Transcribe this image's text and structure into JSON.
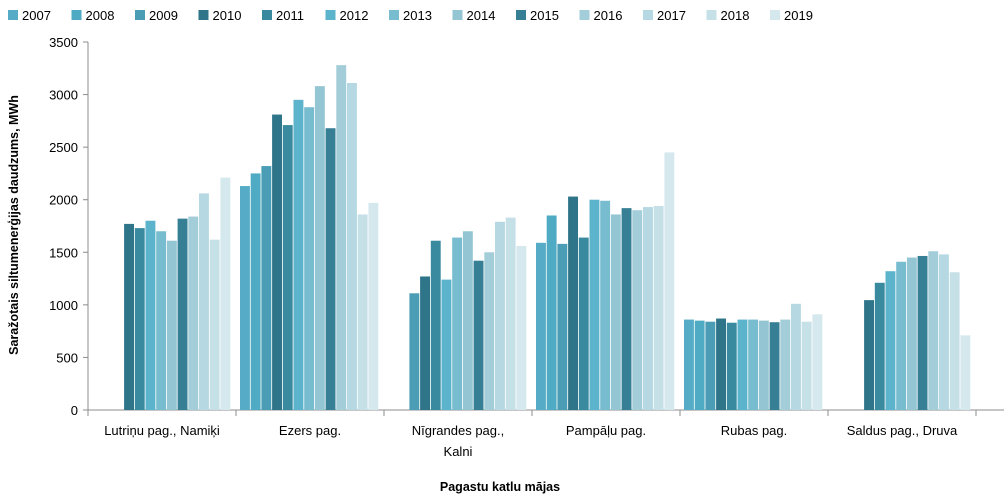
{
  "chart_data": {
    "type": "bar",
    "title": "",
    "xlabel": "Pagastu katlu mājas",
    "ylabel": "Saražotais siltumenerģijas daudzums, MWh",
    "ylim": [
      0,
      3500
    ],
    "yticks": [
      0,
      500,
      1000,
      1500,
      2000,
      2500,
      3000,
      3500
    ],
    "grid": false,
    "legend": "top",
    "categories": [
      [
        "Lutriņu pag., Namiķi"
      ],
      [
        "Ezers pag."
      ],
      [
        "Nīgrandes pag.,",
        "Kalni"
      ],
      [
        "Pampāļu pag."
      ],
      [
        "Rubas pag."
      ],
      [
        "Saldus pag., Druva"
      ]
    ],
    "series": [
      {
        "name": "2007",
        "color": "#56acc6",
        "values": [
          null,
          2130,
          null,
          1590,
          860,
          null
        ]
      },
      {
        "name": "2008",
        "color": "#4faac3",
        "values": [
          null,
          2250,
          null,
          1850,
          850,
          null
        ]
      },
      {
        "name": "2009",
        "color": "#4a9db5",
        "values": [
          null,
          2320,
          1110,
          1580,
          840,
          null
        ]
      },
      {
        "name": "2010",
        "color": "#2e7589",
        "values": [
          1770,
          2810,
          1270,
          2030,
          870,
          1045
        ]
      },
      {
        "name": "2011",
        "color": "#3a8a9f",
        "values": [
          1730,
          2710,
          1610,
          1640,
          830,
          1210
        ]
      },
      {
        "name": "2012",
        "color": "#5bb3cc",
        "values": [
          1800,
          2950,
          1240,
          2000,
          860,
          1320
        ]
      },
      {
        "name": "2013",
        "color": "#78bcd0",
        "values": [
          1700,
          2880,
          1640,
          1990,
          860,
          1410
        ]
      },
      {
        "name": "2014",
        "color": "#93c5d3",
        "values": [
          1610,
          3080,
          1700,
          1860,
          850,
          1450
        ]
      },
      {
        "name": "2015",
        "color": "#377f94",
        "values": [
          1820,
          2680,
          1420,
          1920,
          835,
          1465
        ]
      },
      {
        "name": "2016",
        "color": "#a2cdd9",
        "values": [
          1840,
          3280,
          1500,
          1900,
          860,
          1510
        ]
      },
      {
        "name": "2017",
        "color": "#b5d8e2",
        "values": [
          2060,
          3110,
          1790,
          1930,
          1010,
          1480
        ]
      },
      {
        "name": "2018",
        "color": "#c6e0e8",
        "values": [
          1620,
          1860,
          1830,
          1940,
          840,
          1310
        ]
      },
      {
        "name": "2019",
        "color": "#d4e8ee",
        "values": [
          2210,
          1970,
          1560,
          2450,
          910,
          710
        ]
      }
    ]
  }
}
